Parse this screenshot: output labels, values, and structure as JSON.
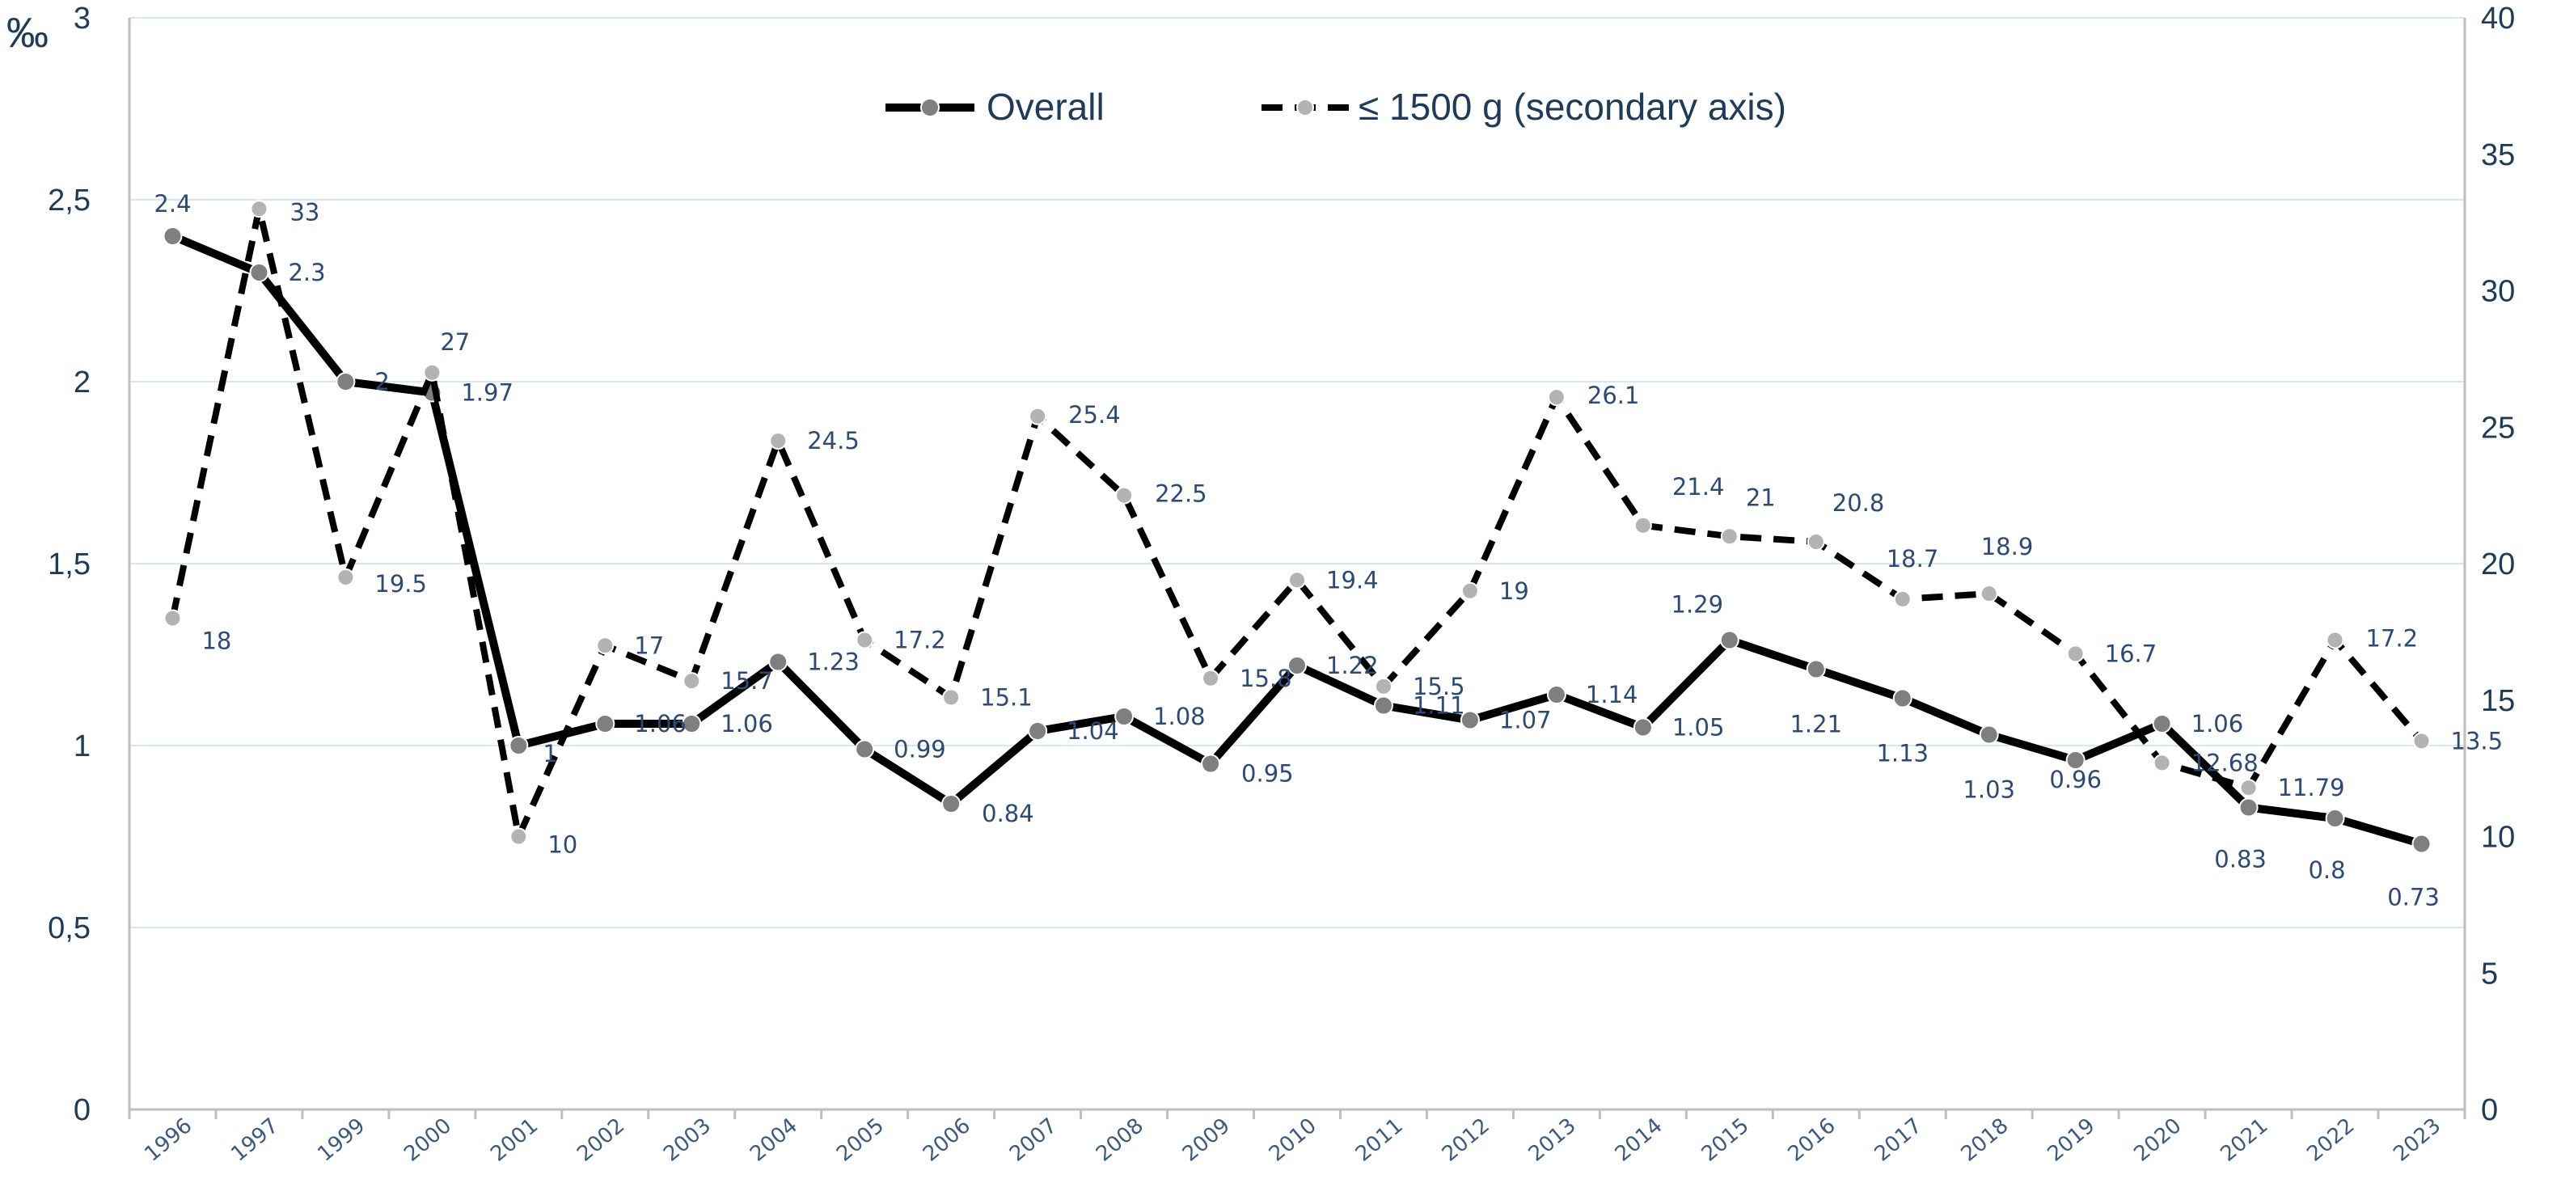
{
  "chart_data": {
    "type": "line",
    "categories": [
      "1996",
      "1997",
      "1999",
      "2000",
      "2001",
      "2002",
      "2003",
      "2004",
      "2005",
      "2006",
      "2007",
      "2008",
      "2009",
      "2010",
      "2011",
      "2012",
      "2013",
      "2014",
      "2015",
      "2016",
      "2017",
      "2018",
      "2019",
      "2020",
      "2021",
      "2022",
      "2023"
    ],
    "y_unit": "‰",
    "ylim": [
      0,
      3
    ],
    "yticks": [
      "0",
      "0,5",
      "1",
      "1,5",
      "2",
      "2,5",
      "3"
    ],
    "y2lim": [
      0,
      40
    ],
    "y2ticks": [
      "0",
      "5",
      "10",
      "15",
      "20",
      "25",
      "30",
      "35",
      "40"
    ],
    "grid": "horizontal",
    "legend_position": "top-center",
    "series": [
      {
        "name": "Overall",
        "axis": "primary",
        "style": "solid",
        "color": "#000000",
        "marker_color": "#7f7f7f",
        "values": [
          2.4,
          2.3,
          2.0,
          1.97,
          1.0,
          1.06,
          1.06,
          1.23,
          0.99,
          0.84,
          1.04,
          1.08,
          0.95,
          1.22,
          1.11,
          1.07,
          1.14,
          1.05,
          1.29,
          1.21,
          1.13,
          1.03,
          0.96,
          1.06,
          0.83,
          0.8,
          0.73
        ],
        "labels": [
          "2.4",
          "2.3",
          "2",
          "1.97",
          "1",
          "1.06",
          "1.06",
          "1.23",
          "0.99",
          "0.84",
          "1.04",
          "1.08",
          "0.95",
          "1.22",
          "1.11",
          "1.07",
          "1.14",
          "1.05",
          "1.29",
          "1.21",
          "1.13",
          "1.03",
          "0.96",
          "1.06",
          "0.83",
          "0.8",
          "0.73"
        ]
      },
      {
        "name": "≤ 1500 g (secondary axis)",
        "axis": "secondary",
        "style": "dashed",
        "color": "#000000",
        "marker_color": "#b3b3b3",
        "values": [
          18,
          33,
          19.5,
          27,
          10,
          17,
          15.7,
          24.5,
          17.2,
          15.1,
          25.4,
          22.5,
          15.8,
          19.4,
          15.5,
          19,
          26.1,
          21.4,
          21,
          20.8,
          18.7,
          18.9,
          16.7,
          12.7,
          11.79,
          17.2,
          13.5
        ],
        "labels": [
          "18",
          "33",
          "19.5",
          "27",
          "10",
          "17",
          "15.7",
          "24.5",
          "17.2",
          "15.1",
          "25.4",
          "22.5",
          "15.8",
          "19.4",
          "15.5",
          "19",
          "26.1",
          "21.4",
          "21",
          "20.8",
          "18.7",
          "18.9",
          "16.7",
          "12.68",
          "11.79",
          "17.2",
          "13.5"
        ]
      }
    ]
  }
}
